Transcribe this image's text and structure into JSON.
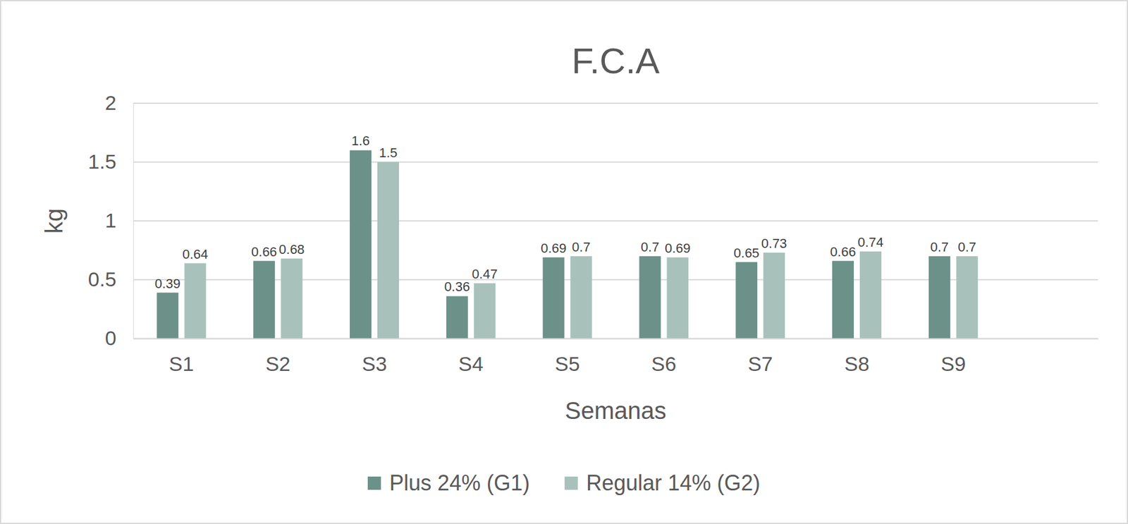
{
  "chart_data": {
    "type": "bar",
    "title": "F.C.A",
    "x_label": "Semanas",
    "y_label": "kg",
    "categories": [
      "S1",
      "S2",
      "S3",
      "S4",
      "S5",
      "S6",
      "S7",
      "S8",
      "S9",
      null
    ],
    "series": [
      {
        "name": "Plus 24% (G1)",
        "color": "#6b9189",
        "values": [
          0.39,
          0.66,
          1.6,
          0.36,
          0.69,
          0.7,
          0.65,
          0.66,
          0.7,
          null
        ]
      },
      {
        "name": "Regular 14% (G2)",
        "color": "#a8c2bb",
        "values": [
          0.64,
          0.68,
          1.5,
          0.47,
          0.7,
          0.69,
          0.73,
          0.74,
          0.7,
          null
        ]
      }
    ],
    "ylim": [
      0,
      2
    ],
    "yticks": [
      0,
      0.5,
      1,
      1.5,
      2
    ],
    "grid": true,
    "legend": "bottom",
    "data_labels": true
  }
}
